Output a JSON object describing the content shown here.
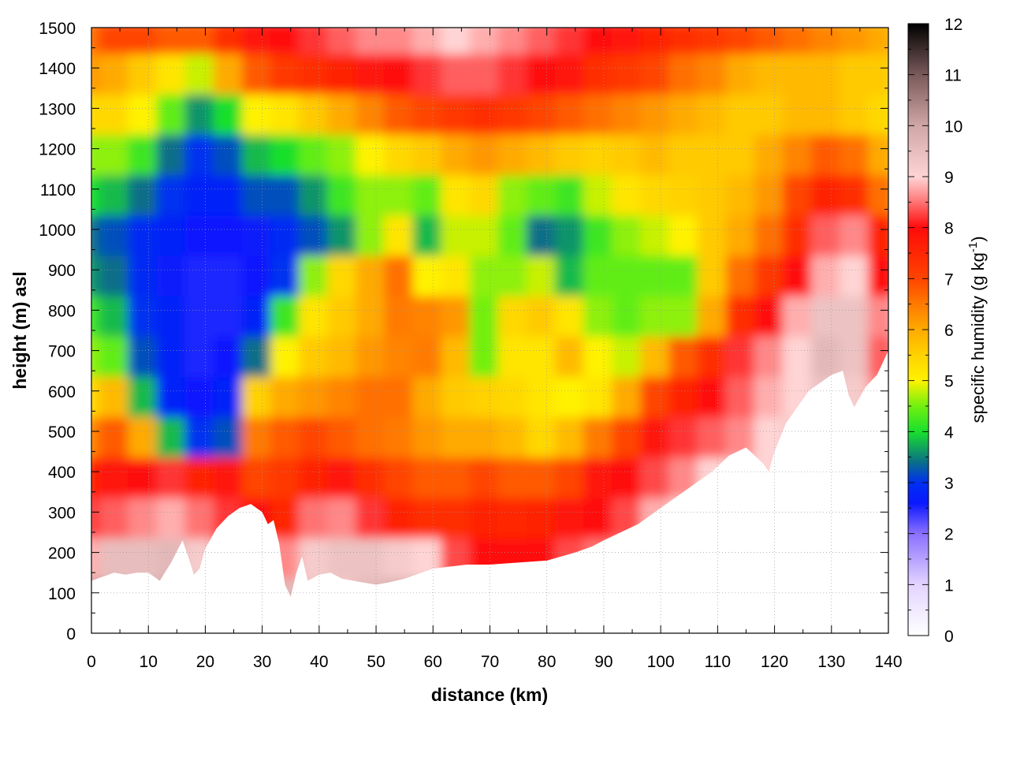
{
  "chart_data": {
    "type": "heatmap",
    "title": "",
    "xlabel": "distance (km)",
    "ylabel": "height (m) asl",
    "xlim": [
      0,
      140
    ],
    "ylim": [
      0,
      1500
    ],
    "x_ticks": [
      0,
      10,
      20,
      30,
      40,
      50,
      60,
      70,
      80,
      90,
      100,
      110,
      120,
      130,
      140
    ],
    "y_ticks": [
      0,
      100,
      200,
      300,
      400,
      500,
      600,
      700,
      800,
      900,
      1000,
      1100,
      1200,
      1300,
      1400,
      1500
    ],
    "grid": true,
    "colorbar": {
      "label_prefix": "specific humidity (g kg",
      "label_sup": "-1",
      "label_suffix": ")",
      "min": 0,
      "max": 12,
      "ticks": [
        0,
        1,
        2,
        3,
        4,
        5,
        6,
        7,
        8,
        9,
        10,
        11,
        12
      ],
      "palette": [
        [
          0,
          "#ffffff"
        ],
        [
          1,
          "#e2d4ff"
        ],
        [
          2,
          "#8a70ff"
        ],
        [
          2.6,
          "#0a18ff"
        ],
        [
          3,
          "#0030f0"
        ],
        [
          3.4,
          "#0a6e88"
        ],
        [
          4,
          "#19e02c"
        ],
        [
          4.5,
          "#72f010"
        ],
        [
          5,
          "#fff200"
        ],
        [
          5.5,
          "#ffd200"
        ],
        [
          6,
          "#ffaa00"
        ],
        [
          6.5,
          "#ff7a00"
        ],
        [
          7,
          "#ff4400"
        ],
        [
          8,
          "#ff0a0a"
        ],
        [
          8.6,
          "#ff8888"
        ],
        [
          9,
          "#ffd4d4"
        ],
        [
          10,
          "#d0a6a6"
        ],
        [
          11,
          "#7a5a5a"
        ],
        [
          12,
          "#000000"
        ]
      ]
    },
    "terrain": {
      "x": [
        0,
        2,
        4,
        6,
        8,
        10,
        12,
        14,
        16,
        17,
        18,
        19,
        20,
        22,
        24,
        26,
        28,
        30,
        31,
        32,
        33,
        34,
        35,
        36,
        37,
        38,
        40,
        42,
        44,
        46,
        48,
        50,
        52,
        55,
        58,
        60,
        63,
        66,
        70,
        75,
        80,
        85,
        88,
        90,
        93,
        96,
        98,
        100,
        103,
        106,
        109,
        112,
        115,
        118,
        119,
        120,
        122,
        124,
        126,
        128,
        130,
        132,
        133,
        134,
        136,
        138,
        140
      ],
      "y": [
        130,
        140,
        150,
        145,
        150,
        150,
        130,
        175,
        230,
        190,
        145,
        160,
        210,
        260,
        290,
        310,
        320,
        300,
        270,
        280,
        220,
        120,
        90,
        150,
        190,
        130,
        145,
        150,
        135,
        130,
        125,
        120,
        125,
        135,
        150,
        160,
        165,
        170,
        170,
        175,
        180,
        200,
        215,
        230,
        250,
        270,
        290,
        310,
        340,
        370,
        400,
        440,
        460,
        420,
        400,
        450,
        520,
        560,
        600,
        620,
        640,
        650,
        590,
        560,
        610,
        640,
        700
      ]
    },
    "grid_x": [
      0,
      5,
      10,
      15,
      20,
      25,
      30,
      35,
      40,
      45,
      50,
      55,
      60,
      65,
      70,
      75,
      80,
      85,
      90,
      95,
      100,
      105,
      110,
      115,
      120,
      125,
      130,
      135,
      140
    ],
    "grid_y": [
      100,
      200,
      300,
      400,
      500,
      600,
      700,
      800,
      900,
      1000,
      1100,
      1200,
      1300,
      1400,
      1500
    ],
    "values": [
      [
        10.2,
        9.8,
        9.5,
        10.0,
        10.2,
        9.5,
        9.2,
        9.6,
        9.4,
        9.3,
        9.6,
        9.8,
        10.0,
        9.8,
        9.6,
        9.0,
        8.8,
        9.0,
        9.5,
        9.2,
        8.8,
        8.8,
        8.8,
        8.8,
        8.8,
        8.8,
        8.8,
        8.8,
        8.8
      ],
      [
        8.8,
        9.5,
        9.5,
        9.6,
        9.2,
        8.5,
        9.0,
        8.6,
        9.2,
        9.4,
        9.4,
        9.2,
        9.0,
        8.3,
        8.0,
        8.0,
        8.0,
        8.3,
        8.5,
        8.6,
        8.8,
        8.8,
        8.8,
        8.8,
        8.8,
        8.8,
        8.8,
        8.8,
        8.8
      ],
      [
        8.2,
        8.4,
        8.6,
        8.8,
        8.5,
        8.2,
        8.0,
        7.5,
        8.5,
        8.6,
        8.2,
        7.6,
        7.4,
        7.4,
        7.6,
        7.5,
        7.6,
        7.8,
        8.0,
        8.3,
        8.8,
        9.0,
        9.0,
        9.0,
        9.0,
        9.0,
        9.0,
        9.0,
        9.0
      ],
      [
        7.6,
        7.8,
        8.0,
        8.2,
        7.6,
        7.8,
        7.0,
        7.2,
        7.6,
        7.8,
        7.4,
        7.0,
        6.8,
        6.8,
        7.0,
        6.8,
        6.8,
        7.0,
        7.8,
        8.0,
        8.3,
        8.6,
        9.0,
        9.2,
        9.0,
        9.0,
        9.0,
        9.0,
        9.0
      ],
      [
        6.4,
        6.8,
        6.0,
        3.8,
        3.0,
        3.2,
        6.5,
        6.8,
        7.0,
        6.8,
        6.6,
        6.5,
        6.2,
        6.0,
        6.0,
        5.8,
        5.4,
        5.8,
        6.5,
        7.0,
        7.8,
        8.2,
        8.4,
        8.6,
        9.0,
        9.2,
        9.2,
        9.0,
        8.8
      ],
      [
        5.4,
        5.8,
        3.8,
        2.8,
        2.6,
        2.8,
        5.5,
        6.0,
        6.2,
        6.4,
        6.6,
        6.6,
        6.0,
        5.6,
        5.5,
        5.4,
        5.2,
        5.0,
        5.2,
        6.0,
        7.0,
        7.6,
        8.0,
        8.4,
        8.8,
        9.0,
        9.4,
        9.2,
        8.6
      ],
      [
        4.6,
        4.4,
        3.2,
        2.8,
        2.5,
        2.6,
        3.4,
        5.0,
        5.6,
        5.8,
        6.2,
        6.4,
        6.5,
        5.8,
        4.5,
        5.2,
        5.2,
        5.8,
        5.0,
        4.8,
        5.8,
        6.8,
        7.4,
        8.2,
        8.6,
        9.0,
        9.6,
        9.4,
        8.4
      ],
      [
        4.2,
        3.8,
        3.0,
        2.8,
        2.5,
        2.5,
        2.8,
        4.2,
        5.2,
        5.6,
        6.0,
        6.5,
        6.4,
        6.2,
        4.5,
        5.4,
        5.6,
        5.2,
        4.6,
        4.4,
        4.6,
        4.6,
        6.0,
        7.4,
        8.0,
        8.8,
        9.4,
        9.4,
        8.6
      ],
      [
        3.6,
        3.4,
        2.9,
        2.7,
        2.5,
        2.5,
        2.6,
        3.0,
        4.6,
        5.4,
        6.0,
        6.6,
        5.0,
        5.2,
        4.6,
        4.6,
        4.8,
        3.8,
        4.4,
        4.4,
        4.4,
        4.4,
        5.6,
        6.6,
        7.2,
        8.0,
        8.8,
        9.0,
        8.0
      ],
      [
        3.4,
        3.2,
        2.9,
        2.8,
        2.6,
        2.6,
        2.7,
        2.9,
        3.2,
        3.6,
        4.6,
        5.2,
        3.8,
        4.8,
        4.8,
        4.4,
        3.4,
        3.6,
        4.2,
        4.6,
        4.8,
        5.0,
        5.6,
        6.0,
        6.6,
        7.4,
        8.4,
        8.6,
        7.6
      ],
      [
        4.0,
        3.8,
        3.4,
        3.0,
        2.8,
        2.8,
        3.2,
        3.2,
        3.6,
        4.2,
        4.6,
        4.6,
        4.4,
        5.2,
        5.4,
        4.6,
        4.4,
        4.2,
        4.8,
        5.2,
        5.4,
        5.5,
        5.6,
        5.8,
        6.2,
        7.0,
        7.6,
        7.4,
        6.6
      ],
      [
        4.6,
        4.6,
        4.2,
        3.4,
        3.0,
        3.2,
        3.8,
        4.0,
        4.4,
        4.6,
        5.0,
        5.4,
        5.6,
        6.0,
        6.2,
        6.0,
        5.8,
        5.6,
        5.5,
        5.6,
        5.8,
        5.6,
        5.6,
        5.6,
        6.0,
        6.4,
        6.8,
        6.6,
        6.0
      ],
      [
        5.4,
        5.4,
        5.0,
        4.4,
        3.6,
        4.0,
        5.0,
        5.2,
        5.6,
        6.0,
        6.4,
        6.8,
        7.0,
        7.2,
        7.4,
        7.2,
        7.0,
        6.8,
        6.6,
        6.4,
        6.2,
        6.0,
        5.8,
        5.6,
        5.6,
        5.8,
        5.8,
        5.6,
        5.4
      ],
      [
        6.2,
        6.0,
        5.6,
        5.2,
        4.8,
        6.0,
        6.8,
        7.2,
        7.4,
        7.6,
        7.8,
        8.0,
        8.2,
        8.4,
        8.4,
        8.2,
        8.0,
        7.8,
        7.4,
        7.2,
        7.0,
        6.6,
        6.4,
        6.0,
        5.8,
        5.8,
        5.8,
        5.6,
        5.6
      ],
      [
        6.6,
        7.0,
        7.0,
        6.8,
        6.8,
        7.4,
        7.8,
        8.0,
        8.2,
        8.4,
        8.6,
        8.6,
        8.8,
        9.0,
        8.8,
        8.6,
        8.4,
        8.2,
        8.0,
        7.8,
        7.6,
        7.4,
        7.2,
        7.0,
        6.8,
        6.6,
        6.4,
        6.2,
        6.0
      ]
    ]
  }
}
